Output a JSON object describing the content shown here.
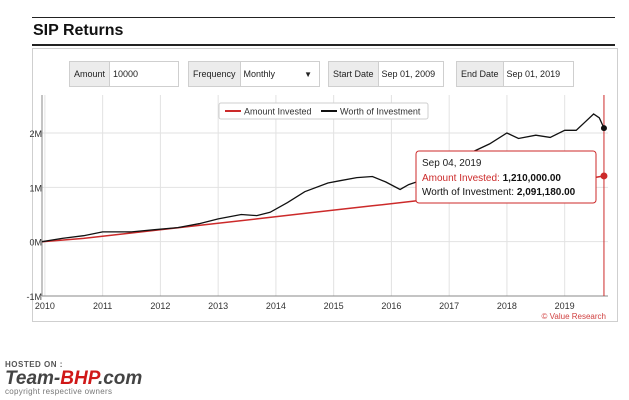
{
  "header": {
    "title": "SIP Returns"
  },
  "controls": {
    "amount": {
      "label": "Amount",
      "value": "10000"
    },
    "frequency": {
      "label": "Frequency",
      "value": "Monthly"
    },
    "start_date": {
      "label": "Start Date",
      "value": "Sep 01, 2009"
    },
    "end_date": {
      "label": "End Date",
      "value": "Sep 01, 2019"
    }
  },
  "colors": {
    "invested": "#cc2a2a",
    "worth": "#111111",
    "grid": "#e2e2e2"
  },
  "chart_data": {
    "type": "line",
    "legend_position": "top-center",
    "xlim": [
      2009.95,
      2019.75
    ],
    "ylim": [
      -1000000,
      2700000
    ],
    "x_ticks": [
      {
        "value": 2010,
        "label": "2010"
      },
      {
        "value": 2011,
        "label": "2011"
      },
      {
        "value": 2012,
        "label": "2012"
      },
      {
        "value": 2013,
        "label": "2013"
      },
      {
        "value": 2014,
        "label": "2014"
      },
      {
        "value": 2015,
        "label": "2015"
      },
      {
        "value": 2016,
        "label": "2016"
      },
      {
        "value": 2017,
        "label": "2017"
      },
      {
        "value": 2018,
        "label": "2018"
      },
      {
        "value": 2019,
        "label": "2019"
      }
    ],
    "y_ticks": [
      {
        "value": -1000000,
        "label": "-1M"
      },
      {
        "value": 0,
        "label": "0M"
      },
      {
        "value": 1000000,
        "label": "1M"
      },
      {
        "value": 2000000,
        "label": "2M"
      }
    ],
    "series": [
      {
        "name": "Amount Invested",
        "color": "#cc2a2a",
        "x": [
          2009.95,
          2010.67,
          2011.67,
          2012.67,
          2013.67,
          2014.67,
          2015.67,
          2016.67,
          2017.67,
          2018.67,
          2019.68
        ],
        "y": [
          0,
          60000,
          180000,
          300000,
          420000,
          540000,
          660000,
          780000,
          900000,
          1020000,
          1210000
        ]
      },
      {
        "name": "Worth of Investment",
        "color": "#111111",
        "x": [
          2009.95,
          2010.3,
          2010.67,
          2011.0,
          2011.5,
          2011.9,
          2012.3,
          2012.67,
          2013.0,
          2013.4,
          2013.67,
          2013.9,
          2014.2,
          2014.5,
          2014.9,
          2015.1,
          2015.4,
          2015.67,
          2015.9,
          2016.15,
          2016.3,
          2016.6,
          2016.8,
          2017.0,
          2017.4,
          2017.7,
          2018.0,
          2018.2,
          2018.5,
          2018.75,
          2019.0,
          2019.2,
          2019.35,
          2019.5,
          2019.6,
          2019.68
        ],
        "y": [
          0,
          60000,
          110000,
          180000,
          180000,
          220000,
          260000,
          330000,
          420000,
          500000,
          480000,
          540000,
          720000,
          920000,
          1080000,
          1120000,
          1180000,
          1200000,
          1100000,
          960000,
          1050000,
          1160000,
          1280000,
          1420000,
          1650000,
          1800000,
          2000000,
          1900000,
          1960000,
          1920000,
          2050000,
          2050000,
          2200000,
          2350000,
          2280000,
          2091180
        ]
      }
    ],
    "tooltip": {
      "date": "Sep 04, 2019",
      "invested_label": "Amount Invested:",
      "invested_value": "1,210,000.00",
      "worth_label": "Worth of Investment:",
      "worth_value": "2,091,180.00"
    },
    "credit": "© Value Research"
  },
  "footer": {
    "hosted": "HOSTED ON :",
    "brand_left": "Team-",
    "brand_mid": "BHP",
    "brand_right": ".com",
    "copyright": "copyright respective owners"
  }
}
